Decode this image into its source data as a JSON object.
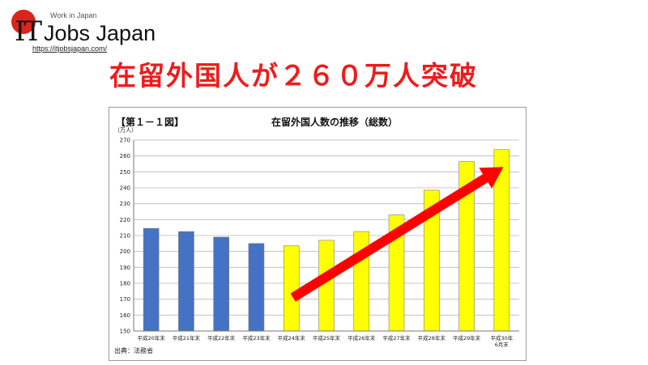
{
  "logo": {
    "tagline": "Work in Japan",
    "it_text": "IT",
    "brand": "Jobs Japan",
    "url": "https://itjobsjapan.com/"
  },
  "headline": "在留外国人が２６０万人突破",
  "chart_data": {
    "type": "bar",
    "figure_label": "【第１－１図】",
    "title": "在留外国人数の推移（総数）",
    "unit_label": "（万人）",
    "ylim": [
      150,
      270
    ],
    "y_ticks": [
      150,
      160,
      170,
      180,
      190,
      200,
      210,
      220,
      230,
      240,
      250,
      260,
      270
    ],
    "grid": true,
    "categories": [
      "平成20年末",
      "平成21年末",
      "平成22年末",
      "平成23年末",
      "平成24年末",
      "平成25年末",
      "平成26年末",
      "平成27年末",
      "平成28年末",
      "平成29年末",
      "平成30年|6月末"
    ],
    "values": [
      214.5,
      212.5,
      209,
      205,
      203.5,
      207,
      212.5,
      223,
      238.5,
      256.5,
      264
    ],
    "bar_colors": [
      "#4472c4",
      "#4472c4",
      "#4472c4",
      "#4472c4",
      "#ffff00",
      "#ffff00",
      "#ffff00",
      "#ffff00",
      "#ffff00",
      "#ffff00",
      "#ffff00"
    ],
    "trend_arrow": {
      "from_category_index": 4,
      "from_value": 171,
      "to_category_index": 10,
      "to_value": 253,
      "color": "#ff0000"
    },
    "source": "出典：法務省"
  }
}
